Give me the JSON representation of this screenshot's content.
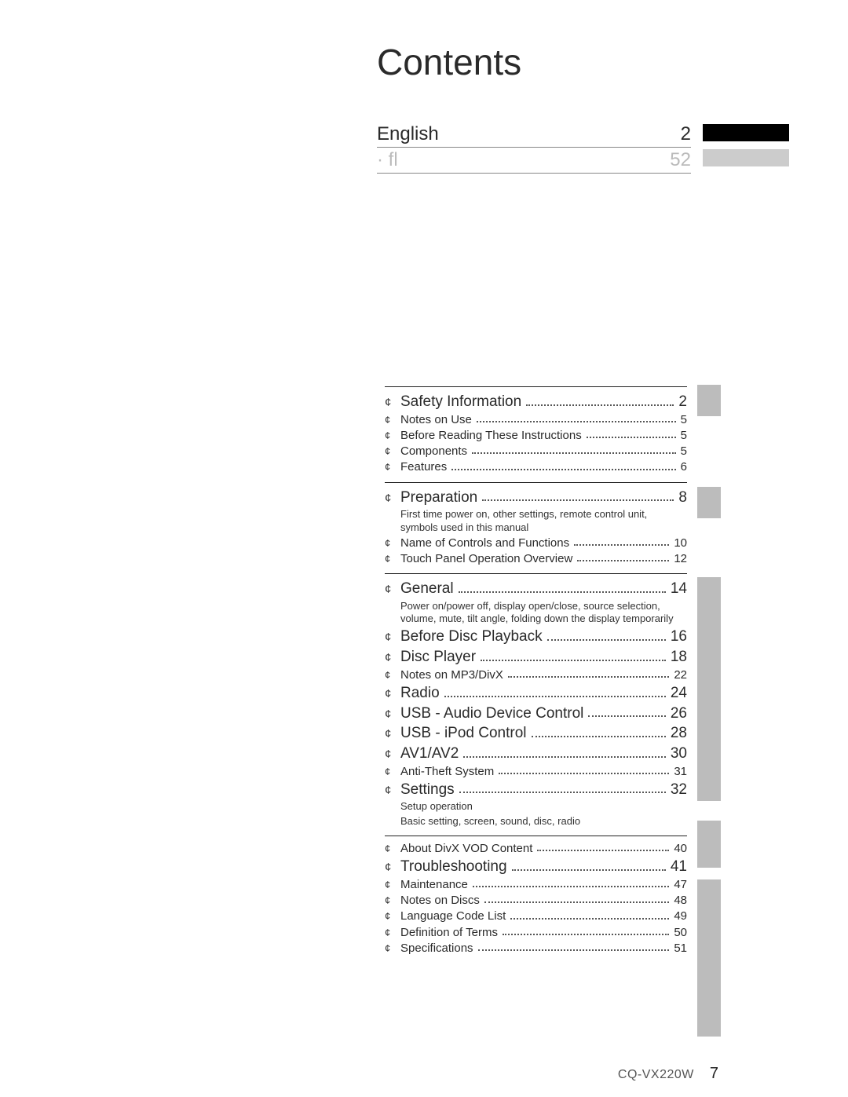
{
  "title": "Contents",
  "languages": [
    {
      "label": "English",
      "page": "2",
      "active": true
    },
    {
      "label": "· fl",
      "page": "52",
      "active": false
    }
  ],
  "colors": {
    "text": "#2a2a2a",
    "muted": "#bbbbbb",
    "sidebar_tab": "#bcbcbc",
    "black_bar": "#000000",
    "rule": "#222222"
  },
  "sections": [
    {
      "items": [
        {
          "level": 1,
          "title": "Safety Information",
          "page": "2"
        },
        {
          "level": 2,
          "title": "Notes on Use",
          "page": "5"
        },
        {
          "level": 2,
          "title": "Before Reading These Instructions",
          "page": "5"
        },
        {
          "level": 2,
          "title": "Components",
          "page": "5"
        },
        {
          "level": 2,
          "title": "Features",
          "page": "6"
        }
      ]
    },
    {
      "items": [
        {
          "level": 1,
          "title": "Preparation",
          "page": "8",
          "sub": "First time power on, other settings, remote control unit, symbols used in this manual"
        },
        {
          "level": 2,
          "title": "Name of Controls and Functions",
          "page": "10"
        },
        {
          "level": 2,
          "title": "Touch Panel Operation Overview",
          "page": "12"
        }
      ]
    },
    {
      "items": [
        {
          "level": 1,
          "title": "General",
          "page": "14",
          "sub": "Power on/power off, display open/close, source selection, volume, mute, tilt angle, folding down the display temporarily"
        },
        {
          "level": 1,
          "title": "Before Disc Playback",
          "page": "16"
        },
        {
          "level": 1,
          "title": "Disc Player",
          "page": "18"
        },
        {
          "level": 2,
          "title": "Notes on MP3/DivX",
          "page": "22"
        },
        {
          "level": 1,
          "title": "Radio",
          "page": "24"
        },
        {
          "level": 1,
          "title": "USB - Audio Device Control",
          "page": "26"
        },
        {
          "level": 1,
          "title": "USB - iPod Control",
          "page": "28"
        },
        {
          "level": 1,
          "title": "AV1/AV2",
          "page": "30"
        },
        {
          "level": 2,
          "title": "Anti-Theft System",
          "page": "31"
        },
        {
          "level": 1,
          "title": "Settings",
          "page": "32",
          "sub": "Setup operation\nBasic setting, screen, sound, disc, radio"
        }
      ]
    },
    {
      "items": [
        {
          "level": 2,
          "title": "About DivX VOD Content",
          "page": "40"
        },
        {
          "level": 1,
          "title": "Troubleshooting",
          "page": "41"
        },
        {
          "level": 2,
          "title": "Maintenance",
          "page": "47"
        },
        {
          "level": 2,
          "title": "Notes on Discs",
          "page": "48"
        },
        {
          "level": 2,
          "title": "Language Code List",
          "page": "49"
        },
        {
          "level": 2,
          "title": "Definition of Terms",
          "page": "50"
        },
        {
          "level": 2,
          "title": "Specifications",
          "page": "51"
        }
      ]
    }
  ],
  "footer": {
    "model": "CQ-VX220W",
    "page_number": "7"
  },
  "bullet_glyph": "¢"
}
